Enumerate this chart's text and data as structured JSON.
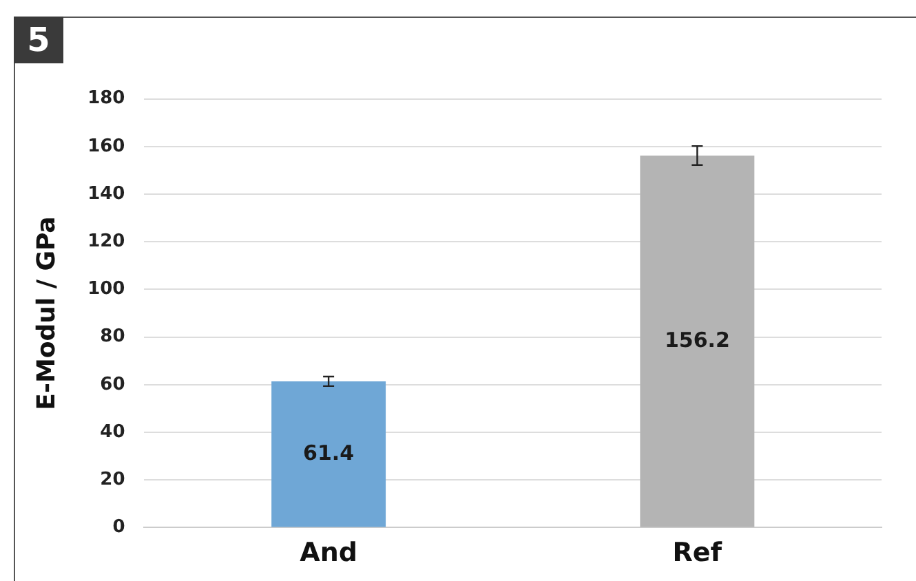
{
  "chart_data": {
    "type": "bar",
    "ylabel": "E-Modul / GPa",
    "annotations": [
      "5"
    ],
    "categories": [
      "And",
      "Ref"
    ],
    "values": [
      61.4,
      156.2
    ],
    "colors": [
      "#6fa7d6",
      "#b4b4b4"
    ],
    "errors": [
      2,
      4
    ],
    "ylim": [
      0,
      180
    ],
    "yticks": [
      0,
      20,
      40,
      60,
      80,
      100,
      120,
      140,
      160,
      180
    ],
    "grid": "y",
    "data_labels": true,
    "legend": false
  }
}
